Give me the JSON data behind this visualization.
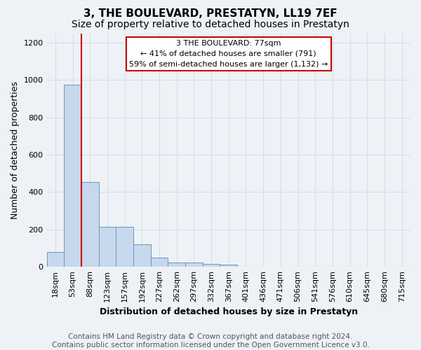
{
  "title": "3, THE BOULEVARD, PRESTATYN, LL19 7EF",
  "subtitle": "Size of property relative to detached houses in Prestatyn",
  "xlabel": "Distribution of detached houses by size in Prestatyn",
  "ylabel": "Number of detached properties",
  "footer": "Contains HM Land Registry data © Crown copyright and database right 2024.\nContains public sector information licensed under the Open Government Licence v3.0.",
  "bin_labels": [
    "18sqm",
    "53sqm",
    "88sqm",
    "123sqm",
    "157sqm",
    "192sqm",
    "227sqm",
    "262sqm",
    "297sqm",
    "332sqm",
    "367sqm",
    "401sqm",
    "436sqm",
    "471sqm",
    "506sqm",
    "541sqm",
    "576sqm",
    "610sqm",
    "645sqm",
    "680sqm",
    "715sqm"
  ],
  "bin_values": [
    80,
    975,
    455,
    215,
    215,
    120,
    50,
    25,
    25,
    15,
    12,
    0,
    0,
    0,
    0,
    0,
    0,
    0,
    0,
    0,
    0
  ],
  "bar_color": "#c8d8ec",
  "bar_edge_color": "#6699bb",
  "annotation_text": "3 THE BOULEVARD: 77sqm\n← 41% of detached houses are smaller (791)\n59% of semi-detached houses are larger (1,132) →",
  "annotation_box_facecolor": "#ffffff",
  "annotation_border_color": "#cc0000",
  "vline_color": "#cc0000",
  "vline_x_index": 1.5,
  "ylim": [
    0,
    1250
  ],
  "yticks": [
    0,
    200,
    400,
    600,
    800,
    1000,
    1200
  ],
  "background_color": "#eef2f7",
  "grid_color": "#d8dde8",
  "title_fontsize": 11,
  "subtitle_fontsize": 10,
  "label_fontsize": 9,
  "tick_fontsize": 8,
  "footer_fontsize": 7.5,
  "annotation_fontsize": 8
}
